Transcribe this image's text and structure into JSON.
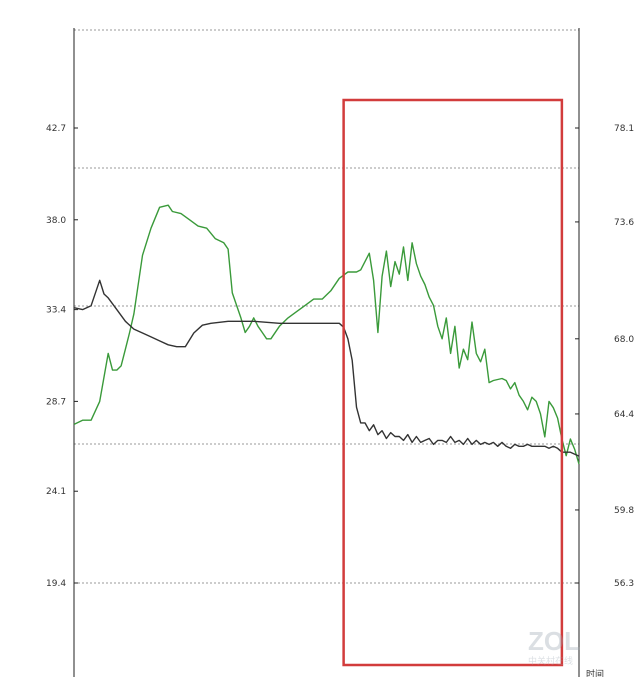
{
  "chart_data": {
    "type": "line",
    "grid": "dotted horizontal",
    "y_left": {
      "ticks": [
        "42.7",
        "38.0",
        "33.4",
        "28.7",
        "24.1",
        "19.4"
      ],
      "values": [
        42.7,
        38.0,
        33.4,
        28.7,
        24.1,
        19.4
      ]
    },
    "y_right": {
      "ticks": [
        "78.1",
        "73.6",
        "68.0",
        "64.4",
        "59.8",
        "56.3"
      ],
      "values": [
        78.1,
        73.6,
        68.0,
        64.4,
        59.8,
        56.3
      ]
    },
    "x_label_partial": "时间",
    "series": [
      {
        "axis": "right",
        "color": "#3a9a3a",
        "points": [
          [
            0,
            63.9
          ],
          [
            2,
            64.1
          ],
          [
            4,
            64.1
          ],
          [
            6,
            65.0
          ],
          [
            8,
            67.3
          ],
          [
            9,
            66.5
          ],
          [
            10,
            66.5
          ],
          [
            11,
            66.7
          ],
          [
            12,
            67.5
          ],
          [
            13,
            68.3
          ],
          [
            14,
            69.2
          ],
          [
            16,
            72.0
          ],
          [
            18,
            73.3
          ],
          [
            20,
            74.3
          ],
          [
            22,
            74.4
          ],
          [
            23,
            74.1
          ],
          [
            25,
            74.0
          ],
          [
            27,
            73.7
          ],
          [
            29,
            73.4
          ],
          [
            31,
            73.3
          ],
          [
            33,
            72.8
          ],
          [
            35,
            72.6
          ],
          [
            36,
            72.3
          ],
          [
            37,
            70.2
          ],
          [
            38,
            69.6
          ],
          [
            39,
            69.0
          ],
          [
            40,
            68.3
          ],
          [
            41,
            68.6
          ],
          [
            42,
            69.0
          ],
          [
            43,
            68.6
          ],
          [
            44,
            68.3
          ],
          [
            45,
            68.0
          ],
          [
            46,
            68.0
          ],
          [
            48,
            68.6
          ],
          [
            50,
            69.0
          ],
          [
            52,
            69.3
          ],
          [
            54,
            69.6
          ],
          [
            56,
            69.9
          ],
          [
            58,
            69.9
          ],
          [
            60,
            70.3
          ],
          [
            62,
            70.9
          ],
          [
            64,
            71.2
          ],
          [
            66,
            71.2
          ],
          [
            67,
            71.3
          ],
          [
            68,
            71.7
          ],
          [
            69,
            72.1
          ],
          [
            70,
            70.8
          ],
          [
            71,
            68.3
          ],
          [
            72,
            71.0
          ],
          [
            73,
            72.2
          ],
          [
            74,
            70.5
          ],
          [
            75,
            71.7
          ],
          [
            76,
            71.1
          ],
          [
            77,
            72.4
          ],
          [
            78,
            70.8
          ],
          [
            79,
            72.6
          ],
          [
            80,
            71.6
          ],
          [
            81,
            71.0
          ],
          [
            82,
            70.6
          ],
          [
            83,
            70.0
          ],
          [
            84,
            69.6
          ],
          [
            85,
            68.6
          ],
          [
            86,
            68.0
          ],
          [
            87,
            69.0
          ],
          [
            88,
            67.3
          ],
          [
            89,
            68.6
          ],
          [
            90,
            66.6
          ],
          [
            91,
            67.5
          ],
          [
            92,
            67.0
          ],
          [
            93,
            68.8
          ],
          [
            94,
            67.3
          ],
          [
            95,
            66.9
          ],
          [
            96,
            67.5
          ],
          [
            97,
            65.9
          ],
          [
            98,
            66.0
          ],
          [
            100,
            66.1
          ],
          [
            101,
            66.0
          ],
          [
            102,
            65.6
          ],
          [
            103,
            65.9
          ],
          [
            104,
            65.3
          ],
          [
            105,
            65.0
          ],
          [
            106,
            64.6
          ],
          [
            107,
            65.2
          ],
          [
            108,
            65.0
          ],
          [
            109,
            64.4
          ],
          [
            110,
            63.3
          ],
          [
            111,
            65.0
          ],
          [
            112,
            64.7
          ],
          [
            113,
            64.2
          ],
          [
            114,
            63.2
          ],
          [
            115,
            62.4
          ],
          [
            116,
            63.2
          ],
          [
            117,
            62.7
          ],
          [
            118,
            62.0
          ]
        ]
      },
      {
        "axis": "left",
        "color": "#333333",
        "points": [
          [
            0,
            33.5
          ],
          [
            2,
            33.4
          ],
          [
            4,
            33.6
          ],
          [
            6,
            34.9
          ],
          [
            7,
            34.2
          ],
          [
            8,
            34.0
          ],
          [
            10,
            33.4
          ],
          [
            12,
            32.8
          ],
          [
            14,
            32.4
          ],
          [
            16,
            32.2
          ],
          [
            18,
            32.0
          ],
          [
            20,
            31.8
          ],
          [
            22,
            31.6
          ],
          [
            24,
            31.5
          ],
          [
            26,
            31.5
          ],
          [
            28,
            32.2
          ],
          [
            30,
            32.6
          ],
          [
            32,
            32.7
          ],
          [
            36,
            32.8
          ],
          [
            42,
            32.8
          ],
          [
            48,
            32.7
          ],
          [
            56,
            32.7
          ],
          [
            60,
            32.7
          ],
          [
            62,
            32.7
          ],
          [
            63,
            32.5
          ],
          [
            64,
            31.9
          ],
          [
            65,
            30.8
          ],
          [
            66,
            28.4
          ],
          [
            67,
            27.6
          ],
          [
            68,
            27.6
          ],
          [
            69,
            27.2
          ],
          [
            70,
            27.5
          ],
          [
            71,
            27.0
          ],
          [
            72,
            27.2
          ],
          [
            73,
            26.8
          ],
          [
            74,
            27.1
          ],
          [
            75,
            26.9
          ],
          [
            76,
            26.9
          ],
          [
            77,
            26.7
          ],
          [
            78,
            27.0
          ],
          [
            79,
            26.6
          ],
          [
            80,
            26.9
          ],
          [
            81,
            26.6
          ],
          [
            82,
            26.7
          ],
          [
            83,
            26.8
          ],
          [
            84,
            26.5
          ],
          [
            85,
            26.7
          ],
          [
            86,
            26.7
          ],
          [
            87,
            26.6
          ],
          [
            88,
            26.9
          ],
          [
            89,
            26.6
          ],
          [
            90,
            26.7
          ],
          [
            91,
            26.5
          ],
          [
            92,
            26.8
          ],
          [
            93,
            26.5
          ],
          [
            94,
            26.7
          ],
          [
            95,
            26.5
          ],
          [
            96,
            26.6
          ],
          [
            97,
            26.5
          ],
          [
            98,
            26.6
          ],
          [
            99,
            26.4
          ],
          [
            100,
            26.6
          ],
          [
            101,
            26.4
          ],
          [
            102,
            26.3
          ],
          [
            103,
            26.5
          ],
          [
            104,
            26.4
          ],
          [
            105,
            26.4
          ],
          [
            106,
            26.5
          ],
          [
            107,
            26.4
          ],
          [
            108,
            26.4
          ],
          [
            109,
            26.4
          ],
          [
            110,
            26.4
          ],
          [
            111,
            26.3
          ],
          [
            112,
            26.4
          ],
          [
            113,
            26.3
          ],
          [
            114,
            26.1
          ],
          [
            116,
            26.1
          ],
          [
            118,
            25.9
          ]
        ]
      }
    ],
    "highlight": {
      "x_start": 63,
      "x_end": 114,
      "color": "#d23c3c"
    }
  },
  "watermark": {
    "logo": "ZOL",
    "subtitle": "中关村在线"
  }
}
